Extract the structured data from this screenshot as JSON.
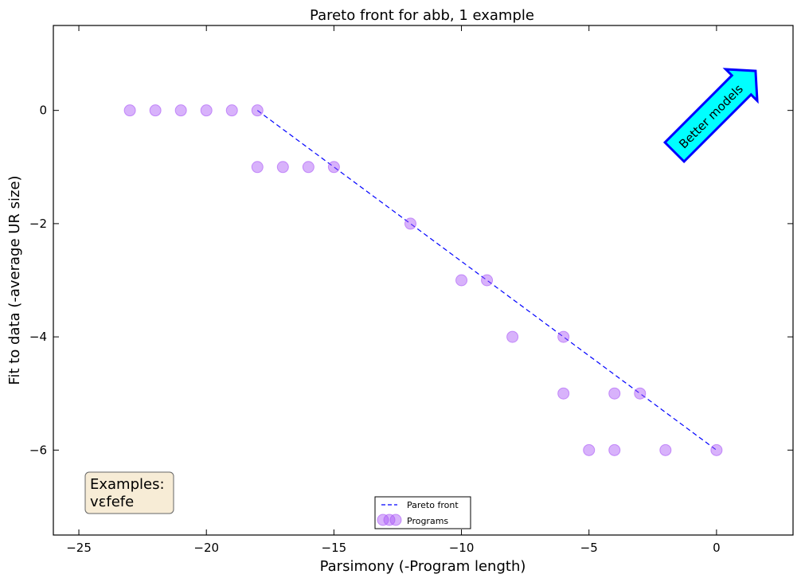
{
  "chart_data": {
    "type": "scatter",
    "title": "Pareto front for abb, 1 example",
    "xlabel": "Parsimony (-Program length)",
    "ylabel": "Fit to data (-average UR size)",
    "xlim": [
      -26,
      3
    ],
    "ylim": [
      -7.5,
      1.5
    ],
    "xticks": [
      -25,
      -20,
      -15,
      -10,
      -5,
      0
    ],
    "yticks": [
      0,
      -2,
      -4,
      -6
    ],
    "xtick_labels": [
      "−25",
      "−20",
      "−15",
      "−10",
      "−5",
      "0"
    ],
    "ytick_labels": [
      "0",
      "−2",
      "−4",
      "−6"
    ],
    "grid": false,
    "legend_position": "bottom-center",
    "legend": [
      {
        "label": "Pareto front",
        "kind": "line"
      },
      {
        "label": "Programs",
        "kind": "marker"
      }
    ],
    "series": [
      {
        "name": "Pareto front",
        "kind": "line",
        "style": "dashed",
        "color": "#0000ff",
        "points": [
          [
            -18,
            0
          ],
          [
            -15,
            -1
          ],
          [
            -12,
            -2
          ],
          [
            -9,
            -3
          ],
          [
            -6,
            -4
          ],
          [
            -3,
            -5
          ],
          [
            0,
            -6
          ]
        ]
      },
      {
        "name": "Programs",
        "kind": "scatter",
        "color": "#a855f7",
        "points": [
          [
            -23,
            0
          ],
          [
            -22,
            0
          ],
          [
            -21,
            0
          ],
          [
            -20,
            0
          ],
          [
            -19,
            0
          ],
          [
            -18,
            0
          ],
          [
            -18,
            -1
          ],
          [
            -17,
            -1
          ],
          [
            -16,
            -1
          ],
          [
            -15,
            -1
          ],
          [
            -12,
            -2
          ],
          [
            -10,
            -3
          ],
          [
            -9,
            -3
          ],
          [
            -8,
            -4
          ],
          [
            -6,
            -4
          ],
          [
            -6,
            -5
          ],
          [
            -4,
            -5
          ],
          [
            -3,
            -5
          ],
          [
            -5,
            -6
          ],
          [
            -4,
            -6
          ],
          [
            -2,
            -6
          ],
          [
            0,
            -6
          ]
        ]
      }
    ],
    "annotations": {
      "arrow_text": "Better models",
      "arrow_color": "#00ffff",
      "arrow_edge": "#0000ff",
      "examples_title": "Examples:",
      "examples_text": "vɛfefe",
      "examples_box_color": "#f7ecd6"
    }
  }
}
